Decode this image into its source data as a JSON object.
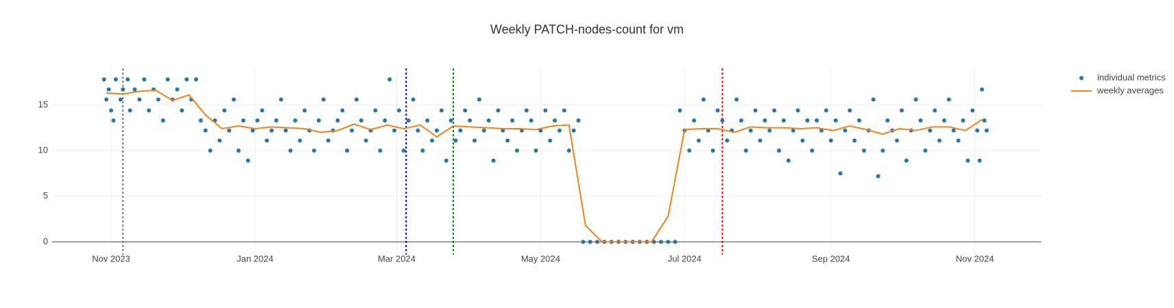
{
  "chart_data": {
    "type": "scatter-line",
    "title": "Weekly PATCH-nodes-count for vm",
    "xlim": [
      "2023-10-07",
      "2024-11-29"
    ],
    "xticks": [
      {
        "value": "2023-11-01",
        "label": "Nov 2023"
      },
      {
        "value": "2024-01-01",
        "label": "Jan 2024"
      },
      {
        "value": "2024-03-01",
        "label": "Mar 2024"
      },
      {
        "value": "2024-05-01",
        "label": "May 2024"
      },
      {
        "value": "2024-07-01",
        "label": "Jul 2024"
      },
      {
        "value": "2024-09-01",
        "label": "Sep 2024"
      },
      {
        "value": "2024-11-01",
        "label": "Nov 2024"
      }
    ],
    "ylim": [
      -1.4,
      19
    ],
    "yticks": [
      0,
      5,
      10,
      15
    ],
    "grid": true,
    "zeroline": true,
    "legend": "top-right",
    "vlines": [
      {
        "x": "2023-11-06",
        "color": "#777777"
      },
      {
        "x": "2024-03-05",
        "color": "#0000ff"
      },
      {
        "x": "2024-03-25",
        "color": "#008000"
      },
      {
        "x": "2024-07-17",
        "color": "#ff0000"
      }
    ],
    "series": [
      {
        "name": "individual metrics",
        "color": "#1f77b4",
        "mode": "markers",
        "x": [
          "2023-10-29",
          "2023-10-30",
          "2023-10-31",
          "2023-11-01",
          "2023-11-02",
          "2023-11-03",
          "2023-11-05",
          "2023-11-06",
          "2023-11-08",
          "2023-11-09",
          "2023-11-11",
          "2023-11-13",
          "2023-11-15",
          "2023-11-17",
          "2023-11-19",
          "2023-11-21",
          "2023-11-23",
          "2023-11-25",
          "2023-11-27",
          "2023-11-29",
          "2023-12-01",
          "2023-12-03",
          "2023-12-05",
          "2023-12-07",
          "2023-12-09",
          "2023-12-11",
          "2023-12-13",
          "2023-12-15",
          "2023-12-17",
          "2023-12-19",
          "2023-12-21",
          "2023-12-23",
          "2023-12-25",
          "2023-12-27",
          "2023-12-29",
          "2023-12-31",
          "2024-01-02",
          "2024-01-04",
          "2024-01-06",
          "2024-01-08",
          "2024-01-10",
          "2024-01-12",
          "2024-01-14",
          "2024-01-16",
          "2024-01-18",
          "2024-01-20",
          "2024-01-22",
          "2024-01-24",
          "2024-01-26",
          "2024-01-28",
          "2024-01-30",
          "2024-02-01",
          "2024-02-03",
          "2024-02-05",
          "2024-02-07",
          "2024-02-09",
          "2024-02-11",
          "2024-02-13",
          "2024-02-15",
          "2024-02-17",
          "2024-02-19",
          "2024-02-21",
          "2024-02-23",
          "2024-02-25",
          "2024-02-27",
          "2024-02-29",
          "2024-03-02",
          "2024-03-04",
          "2024-03-06",
          "2024-03-08",
          "2024-03-10",
          "2024-03-12",
          "2024-03-14",
          "2024-03-16",
          "2024-03-18",
          "2024-03-20",
          "2024-03-22",
          "2024-03-24",
          "2024-03-26",
          "2024-03-28",
          "2024-03-30",
          "2024-04-01",
          "2024-04-03",
          "2024-04-05",
          "2024-04-07",
          "2024-04-09",
          "2024-04-11",
          "2024-04-13",
          "2024-04-15",
          "2024-04-17",
          "2024-04-19",
          "2024-04-21",
          "2024-04-23",
          "2024-04-25",
          "2024-04-27",
          "2024-04-29",
          "2024-05-01",
          "2024-05-03",
          "2024-05-05",
          "2024-05-07",
          "2024-05-09",
          "2024-05-11",
          "2024-05-13",
          "2024-05-15",
          "2024-05-17",
          "2024-05-19",
          "2024-05-22",
          "2024-05-25",
          "2024-05-28",
          "2024-05-31",
          "2024-06-03",
          "2024-06-06",
          "2024-06-09",
          "2024-06-12",
          "2024-06-15",
          "2024-06-18",
          "2024-06-21",
          "2024-06-24",
          "2024-06-27",
          "2024-06-29",
          "2024-07-01",
          "2024-07-03",
          "2024-07-05",
          "2024-07-07",
          "2024-07-09",
          "2024-07-11",
          "2024-07-13",
          "2024-07-15",
          "2024-07-17",
          "2024-07-19",
          "2024-07-21",
          "2024-07-23",
          "2024-07-25",
          "2024-07-27",
          "2024-07-29",
          "2024-07-31",
          "2024-08-02",
          "2024-08-04",
          "2024-08-06",
          "2024-08-08",
          "2024-08-10",
          "2024-08-12",
          "2024-08-14",
          "2024-08-16",
          "2024-08-18",
          "2024-08-20",
          "2024-08-22",
          "2024-08-24",
          "2024-08-26",
          "2024-08-28",
          "2024-08-30",
          "2024-09-01",
          "2024-09-03",
          "2024-09-05",
          "2024-09-07",
          "2024-09-09",
          "2024-09-11",
          "2024-09-13",
          "2024-09-15",
          "2024-09-17",
          "2024-09-19",
          "2024-09-21",
          "2024-09-23",
          "2024-09-25",
          "2024-09-27",
          "2024-09-29",
          "2024-10-01",
          "2024-10-03",
          "2024-10-05",
          "2024-10-07",
          "2024-10-09",
          "2024-10-11",
          "2024-10-13",
          "2024-10-15",
          "2024-10-17",
          "2024-10-19",
          "2024-10-21",
          "2024-10-23",
          "2024-10-25",
          "2024-10-27",
          "2024-10-29",
          "2024-10-31",
          "2024-11-02",
          "2024-11-03",
          "2024-11-04",
          "2024-11-05",
          "2024-11-06"
        ],
        "values": [
          17.8,
          15.6,
          16.7,
          14.4,
          13.3,
          17.8,
          15.6,
          16.7,
          17.8,
          14.4,
          16.7,
          15.6,
          17.8,
          14.4,
          16.7,
          15.6,
          13.3,
          17.8,
          15.6,
          16.7,
          14.4,
          17.8,
          15.6,
          17.8,
          13.3,
          12.2,
          10.0,
          13.3,
          11.1,
          14.4,
          12.2,
          15.6,
          10.0,
          13.3,
          8.9,
          12.2,
          13.3,
          14.4,
          11.1,
          12.2,
          13.3,
          15.6,
          12.2,
          10.0,
          13.3,
          11.1,
          14.4,
          12.2,
          10.0,
          13.3,
          15.6,
          11.1,
          12.2,
          13.3,
          14.4,
          10.0,
          12.2,
          15.6,
          13.3,
          11.1,
          12.2,
          14.4,
          10.0,
          13.3,
          17.8,
          12.2,
          14.4,
          10.0,
          13.3,
          15.6,
          12.2,
          10.0,
          13.3,
          11.1,
          12.2,
          14.4,
          8.9,
          13.3,
          11.1,
          12.2,
          14.4,
          13.3,
          11.1,
          15.6,
          12.2,
          13.3,
          8.9,
          14.4,
          12.2,
          11.1,
          13.3,
          10.0,
          12.2,
          14.4,
          13.3,
          10.0,
          12.2,
          14.4,
          11.1,
          13.3,
          12.2,
          14.4,
          10.0,
          12.2,
          13.3,
          0,
          0,
          0,
          0,
          0,
          0,
          0,
          0,
          0,
          0,
          0,
          0,
          0,
          0,
          14.4,
          12.2,
          10.0,
          13.3,
          11.1,
          15.6,
          12.2,
          10.0,
          14.4,
          13.3,
          11.1,
          12.2,
          15.6,
          13.3,
          10.0,
          12.2,
          14.4,
          11.1,
          13.3,
          12.2,
          14.4,
          10.0,
          13.3,
          8.9,
          12.2,
          14.4,
          11.1,
          13.3,
          10.0,
          13.3,
          12.2,
          14.4,
          11.1,
          13.3,
          7.5,
          12.2,
          14.4,
          11.1,
          13.3,
          10.0,
          12.2,
          15.6,
          7.2,
          10.0,
          13.3,
          12.2,
          11.1,
          14.4,
          8.9,
          12.2,
          15.6,
          13.3,
          10.0,
          12.2,
          14.4,
          11.1,
          13.3,
          15.6,
          12.2,
          11.1,
          13.3,
          8.9,
          14.4,
          12.2,
          8.9,
          16.7,
          13.3,
          12.2
        ]
      },
      {
        "name": "weekly averages",
        "color": "#ff7f0e",
        "mode": "lines",
        "x": [
          "2023-10-30",
          "2023-11-06",
          "2023-11-13",
          "2023-11-20",
          "2023-11-27",
          "2023-12-04",
          "2023-12-11",
          "2023-12-18",
          "2023-12-25",
          "2024-01-01",
          "2024-01-08",
          "2024-01-15",
          "2024-01-22",
          "2024-01-29",
          "2024-02-05",
          "2024-02-12",
          "2024-02-19",
          "2024-02-26",
          "2024-03-04",
          "2024-03-11",
          "2024-03-18",
          "2024-03-25",
          "2024-04-01",
          "2024-04-08",
          "2024-04-15",
          "2024-04-22",
          "2024-04-29",
          "2024-05-06",
          "2024-05-13",
          "2024-05-20",
          "2024-05-27",
          "2024-06-03",
          "2024-06-10",
          "2024-06-17",
          "2024-06-24",
          "2024-07-01",
          "2024-07-08",
          "2024-07-15",
          "2024-07-22",
          "2024-07-29",
          "2024-08-05",
          "2024-08-12",
          "2024-08-19",
          "2024-08-26",
          "2024-09-02",
          "2024-09-09",
          "2024-09-16",
          "2024-09-23",
          "2024-09-30",
          "2024-10-07",
          "2024-10-14",
          "2024-10-21",
          "2024-10-28",
          "2024-11-04"
        ],
        "values": [
          16.3,
          16.2,
          16.5,
          16.6,
          15.5,
          16.1,
          13.9,
          12.4,
          12.7,
          12.4,
          12.6,
          12.5,
          12.4,
          12.0,
          12.2,
          12.9,
          12.3,
          12.8,
          12.4,
          12.8,
          11.5,
          12.7,
          12.6,
          12.5,
          12.4,
          12.4,
          12.3,
          12.7,
          12.8,
          1.8,
          0,
          0,
          0,
          0,
          2.8,
          12.3,
          12.4,
          12.4,
          12.0,
          12.6,
          12.5,
          12.5,
          12.4,
          12.5,
          12.2,
          12.7,
          12.3,
          11.8,
          12.4,
          12.2,
          12.6,
          12.6,
          12.2,
          13.4
        ]
      }
    ]
  }
}
